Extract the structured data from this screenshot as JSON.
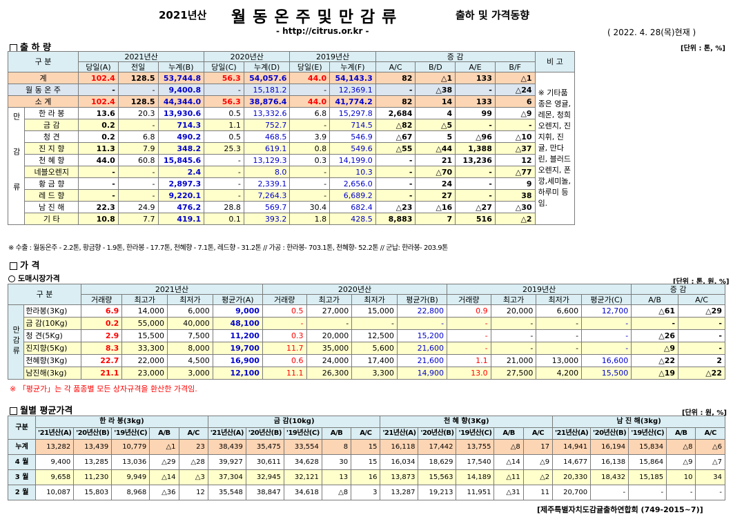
{
  "header": {
    "year": "2021년산",
    "title": "월 동 온 주 및 만 감 류",
    "subtitle": "출하 및 가격동향",
    "url": "- http://citrus.or.kr -",
    "date": "( 2022. 4. 28(목)현재 )"
  },
  "s1": {
    "title": "출 하 량",
    "unit": "[단위 : 톤, %]",
    "h_gubun": "구 분",
    "h_2021": "2021년산",
    "h_2020": "2020년산",
    "h_2019": "2019년산",
    "h_jg": "증 감",
    "h_bigo": "비 고",
    "sub": [
      "당일(A)",
      "전일",
      "누계(B)",
      "당일(C)",
      "누계(D)",
      "당일(E)",
      "누계(F)",
      "A/C",
      "B/D",
      "A/E",
      "B/F"
    ],
    "mangam": "만감류",
    "note": "※ 기타품종은 영귤,레몬, 청희오렌지, 진지휘, 진귤, 만다린, 블러드오렌지, 폰깡,세미놀, 하루미 등 임.",
    "rows": [
      {
        "name": "계",
        "v": [
          "102.4",
          "128.5",
          "53,744.8",
          "56.3",
          "54,057.6",
          "44.0",
          "54,143.3",
          "82",
          "△1",
          "133",
          "△1"
        ]
      },
      {
        "name": "월 동 온 주",
        "v": [
          "-",
          "-",
          "9,400.8",
          "-",
          "15,181.2",
          "-",
          "12,369.1",
          "-",
          "△38",
          "-",
          "△24"
        ]
      },
      {
        "name": "소 계",
        "v": [
          "102.4",
          "128.5",
          "44,344.0",
          "56.3",
          "38,876.4",
          "44.0",
          "41,774.2",
          "82",
          "14",
          "133",
          "6"
        ]
      },
      {
        "name": "한 라 봉",
        "v": [
          "13.6",
          "20.3",
          "13,930.6",
          "0.5",
          "13,332.6",
          "6.8",
          "15,297.8",
          "2,684",
          "4",
          "99",
          "△9"
        ]
      },
      {
        "name": "금 감",
        "v": [
          "0.2",
          "-",
          "714.3",
          "1.1",
          "752.7",
          "-",
          "714.5",
          "△82",
          "△5",
          "-",
          "-"
        ]
      },
      {
        "name": "청 견",
        "v": [
          "0.2",
          "6.8",
          "490.2",
          "0.5",
          "468.5",
          "3.9",
          "546.9",
          "△67",
          "5",
          "△96",
          "△10"
        ]
      },
      {
        "name": "진 지 향",
        "v": [
          "11.3",
          "7.9",
          "348.2",
          "25.3",
          "619.1",
          "0.8",
          "549.6",
          "△55",
          "△44",
          "1,388",
          "△37"
        ]
      },
      {
        "name": "천 혜 향",
        "v": [
          "44.0",
          "60.8",
          "15,845.6",
          "-",
          "13,129.3",
          "0.3",
          "14,199.0",
          "-",
          "21",
          "13,236",
          "12"
        ]
      },
      {
        "name": "네블오렌지",
        "v": [
          "-",
          "-",
          "2.4",
          "-",
          "8.0",
          "-",
          "10.3",
          "-",
          "△70",
          "-",
          "△77"
        ]
      },
      {
        "name": "황 금 향",
        "v": [
          "-",
          "-",
          "2,897.3",
          "-",
          "2,339.1",
          "-",
          "2,656.0",
          "-",
          "24",
          "-",
          "9"
        ]
      },
      {
        "name": "레 드 향",
        "v": [
          "-",
          "-",
          "9,220.1",
          "-",
          "7,264.3",
          "-",
          "6,689.2",
          "-",
          "27",
          "-",
          "38"
        ]
      },
      {
        "name": "남 진 해",
        "v": [
          "22.3",
          "24.9",
          "476.2",
          "28.8",
          "569.7",
          "30.4",
          "682.4",
          "△23",
          "△16",
          "△27",
          "△30"
        ]
      },
      {
        "name": "기 타",
        "v": [
          "10.8",
          "7.7",
          "419.1",
          "0.1",
          "393.2",
          "1.8",
          "428.5",
          "8,883",
          "7",
          "516",
          "△2"
        ]
      }
    ],
    "footnote": "※ 수출 : 월동온주 - 2.2톤, 황금향 - 1.9톤, 한라봉 - 17.7톤, 천혜향 - 7.1톤, 레드향 - 31.2톤 // 가공 : 한라봉- 703.1톤, 천혜향- 52.2톤 // 군납: 한라봉- 203.9톤"
  },
  "s2": {
    "title": "가 격",
    "sub_title": "도매시장가격",
    "unit": "[단위 : 톤, 원, %]",
    "h_gubun": "구 분",
    "h_2021": "2021년산",
    "h_2020": "2020년산",
    "h_2019": "2019년산",
    "h_jg": "증 감",
    "sub": [
      "거래량",
      "최고가",
      "최저가",
      "평균가(A)",
      "거래량",
      "최고가",
      "최저가",
      "평균가(B)",
      "거래량",
      "최고가",
      "최저가",
      "평균가(C)",
      "A/B",
      "A/C"
    ],
    "mangam": "만감류",
    "rows": [
      {
        "name": "한라봉(3Kg)",
        "v": [
          "6.9",
          "14,000",
          "6,000",
          "9,000",
          "0.5",
          "27,000",
          "15,000",
          "22,800",
          "0.9",
          "20,000",
          "6,600",
          "12,700",
          "△61",
          "△29"
        ]
      },
      {
        "name": "금 감(10Kg)",
        "v": [
          "0.2",
          "55,000",
          "40,000",
          "48,100",
          "-",
          "-",
          "-",
          "-",
          "-",
          "-",
          "-",
          "-",
          "-",
          "-"
        ]
      },
      {
        "name": "청 견(5Kg)",
        "v": [
          "2.9",
          "15,500",
          "7,500",
          "11,200",
          "0.3",
          "20,000",
          "12,500",
          "15,200",
          "-",
          "-",
          "-",
          "-",
          "△26",
          "-"
        ]
      },
      {
        "name": "진지향(5Kg)",
        "v": [
          "8.3",
          "33,300",
          "8,000",
          "19,700",
          "11.7",
          "35,000",
          "5,600",
          "21,600",
          "-",
          "-",
          "-",
          "-",
          "△9",
          "-"
        ]
      },
      {
        "name": "천혜향(3Kg)",
        "v": [
          "22.7",
          "22,000",
          "4,500",
          "16,900",
          "0.6",
          "24,000",
          "17,400",
          "21,600",
          "1.1",
          "21,000",
          "13,000",
          "16,600",
          "△22",
          "2"
        ]
      },
      {
        "name": "남진해(3kg)",
        "v": [
          "21.1",
          "23,000",
          "3,000",
          "12,100",
          "11.1",
          "26,300",
          "3,300",
          "14,900",
          "13.0",
          "27,500",
          "4,200",
          "15,500",
          "△19",
          "△22"
        ]
      }
    ],
    "footnote": "※ 「평균가」는 각 품종별 모든 상자규격을 환산한 가격임."
  },
  "s3": {
    "title": "월별 평균가격",
    "unit": "[단위 : 원, %]",
    "h_gubun": "구분",
    "groups": [
      "한 라 봉(3kg)",
      "금 감(10kg)",
      "천 혜 향(3Kg)",
      "남 진 해(3kg)"
    ],
    "sub": [
      "'21년산(A)",
      "'20년산(B)",
      "'19년산(C)",
      "A/B",
      "A/C"
    ],
    "rows": [
      {
        "name": "누계",
        "v": [
          "13,282",
          "13,439",
          "10,779",
          "△1",
          "23",
          "38,439",
          "35,475",
          "33,554",
          "8",
          "15",
          "16,118",
          "17,442",
          "13,755",
          "△8",
          "17",
          "14,941",
          "16,194",
          "15,834",
          "△8",
          "△6"
        ]
      },
      {
        "name": "4 월",
        "v": [
          "9,400",
          "13,285",
          "13,036",
          "△29",
          "△28",
          "39,927",
          "30,611",
          "34,628",
          "30",
          "15",
          "16,034",
          "18,629",
          "17,540",
          "△14",
          "△9",
          "14,677",
          "16,138",
          "15,864",
          "△9",
          "△7"
        ]
      },
      {
        "name": "3 월",
        "v": [
          "9,658",
          "11,230",
          "9,949",
          "△14",
          "△3",
          "37,304",
          "32,945",
          "32,121",
          "13",
          "16",
          "13,873",
          "15,563",
          "14,189",
          "△11",
          "△2",
          "20,330",
          "18,432",
          "15,185",
          "10",
          "34"
        ]
      },
      {
        "name": "2 월",
        "v": [
          "10,087",
          "15,803",
          "8,968",
          "△36",
          "12",
          "35,548",
          "38,847",
          "34,618",
          "△8",
          "3",
          "13,287",
          "19,213",
          "11,951",
          "△31",
          "11",
          "20,700",
          "-",
          "-",
          "-",
          "-"
        ]
      }
    ]
  },
  "footer": "[제주특별자치도감귤출하연합회 (749-2015~7)]"
}
